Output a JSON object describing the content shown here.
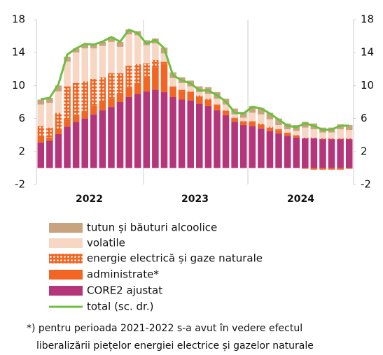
{
  "chart_data": {
    "type": "bar",
    "categories": [
      null,
      null,
      null,
      null,
      null,
      null,
      null,
      null,
      null,
      null,
      null,
      null,
      null,
      null,
      null,
      null,
      null,
      null,
      null,
      null,
      null,
      null,
      null,
      null,
      null,
      null,
      null,
      null,
      null,
      null,
      null,
      null,
      null,
      null,
      null,
      null
    ],
    "groups": [
      "2022",
      "2023",
      "2024"
    ],
    "ylim": [
      -2,
      18
    ],
    "yticks": [
      -2,
      2,
      6,
      10,
      14,
      18
    ],
    "y2lim": [
      -2,
      18
    ],
    "y2ticks": [
      -2,
      2,
      6,
      10,
      14,
      18
    ],
    "stacked": true,
    "series": [
      {
        "name": "CORE2 ajustat",
        "color": "#b5357a",
        "type": "bar",
        "values": [
          3.1,
          3.3,
          4.1,
          5.0,
          5.6,
          6.0,
          6.5,
          7.0,
          7.4,
          8.0,
          8.6,
          9.0,
          9.3,
          9.5,
          9.2,
          8.6,
          8.3,
          8.2,
          7.8,
          7.5,
          7.0,
          6.4,
          5.6,
          5.2,
          5.1,
          4.8,
          4.5,
          4.2,
          3.9,
          3.7,
          3.6,
          3.6,
          3.5,
          3.5,
          3.5,
          3.5
        ]
      },
      {
        "name": "administrate*",
        "color": "#f26522",
        "type": "bar",
        "values": [
          0.8,
          0.4,
          0.6,
          0.9,
          0.9,
          0.9,
          1.0,
          1.0,
          1.0,
          1.1,
          1.2,
          1.3,
          1.8,
          2.7,
          3.4,
          1.1,
          1.0,
          1.0,
          0.9,
          0.8,
          0.6,
          0.5,
          0.4,
          0.4,
          0.5,
          0.5,
          0.4,
          0.4,
          0.3,
          0.2,
          -0.1,
          -0.2,
          -0.2,
          -0.2,
          -0.2,
          -0.1
        ]
      },
      {
        "name": "energie electrică și gaze naturale",
        "color": "#f26522",
        "type": "bar",
        "pattern": "dots",
        "values": [
          1.2,
          1.2,
          2.0,
          4.0,
          3.8,
          3.6,
          3.3,
          3.0,
          3.1,
          2.4,
          2.6,
          2.3,
          1.6,
          0.9,
          0.3,
          0.2,
          0.2,
          0.1,
          0.1,
          0.1,
          0.1,
          0.1,
          0.1,
          0.1,
          0.1,
          0.1,
          0.1,
          0.1,
          0.1,
          0.1,
          0.1,
          0.1,
          0.1,
          0.1,
          0.1,
          0.1
        ]
      },
      {
        "name": "volatile",
        "color": "#f7d6c4",
        "type": "bar",
        "values": [
          2.6,
          3.0,
          2.6,
          3.0,
          3.7,
          4.0,
          3.7,
          3.8,
          3.8,
          3.2,
          3.8,
          3.5,
          2.2,
          2.0,
          1.0,
          1.0,
          0.8,
          0.6,
          0.4,
          0.6,
          0.7,
          0.7,
          0.4,
          0.4,
          1.0,
          1.1,
          0.9,
          0.5,
          0.4,
          0.5,
          1.2,
          1.0,
          0.7,
          0.7,
          1.1,
          1.0
        ]
      },
      {
        "name": "tutun și băuturi alcoolice",
        "color": "#c8a47e",
        "type": "bar",
        "values": [
          0.6,
          0.6,
          0.7,
          0.6,
          0.5,
          0.5,
          0.5,
          0.5,
          0.6,
          0.6,
          0.6,
          0.5,
          0.6,
          0.6,
          0.7,
          0.7,
          0.7,
          0.7,
          0.7,
          0.8,
          0.8,
          0.7,
          0.7,
          0.7,
          0.8,
          0.8,
          0.8,
          0.8,
          0.7,
          0.7,
          0.7,
          0.7,
          0.6,
          0.6,
          0.6,
          0.6
        ]
      },
      {
        "name": "total (sc. dr.)",
        "color": "#6cbf3f",
        "type": "line",
        "axis": "y2",
        "values": [
          8.35,
          8.5,
          10.15,
          13.76,
          14.49,
          15.05,
          14.96,
          15.32,
          15.88,
          15.32,
          16.76,
          16.37,
          15.07,
          15.52,
          14.53,
          11.23,
          10.64,
          10.25,
          9.43,
          9.4,
          8.83,
          8.07,
          6.72,
          6.61,
          7.41,
          7.23,
          6.61,
          5.86,
          5.13,
          4.94,
          5.42,
          5.1,
          4.62,
          4.67,
          5.11,
          5.14
        ]
      }
    ],
    "legend_order": [
      4,
      3,
      2,
      1,
      0,
      5
    ],
    "footnote": [
      "*) pentru perioada 2021-2022 s-a avut în vedere efectul",
      "liberalizării piețelor energiei electrice și gazelor naturale"
    ]
  }
}
